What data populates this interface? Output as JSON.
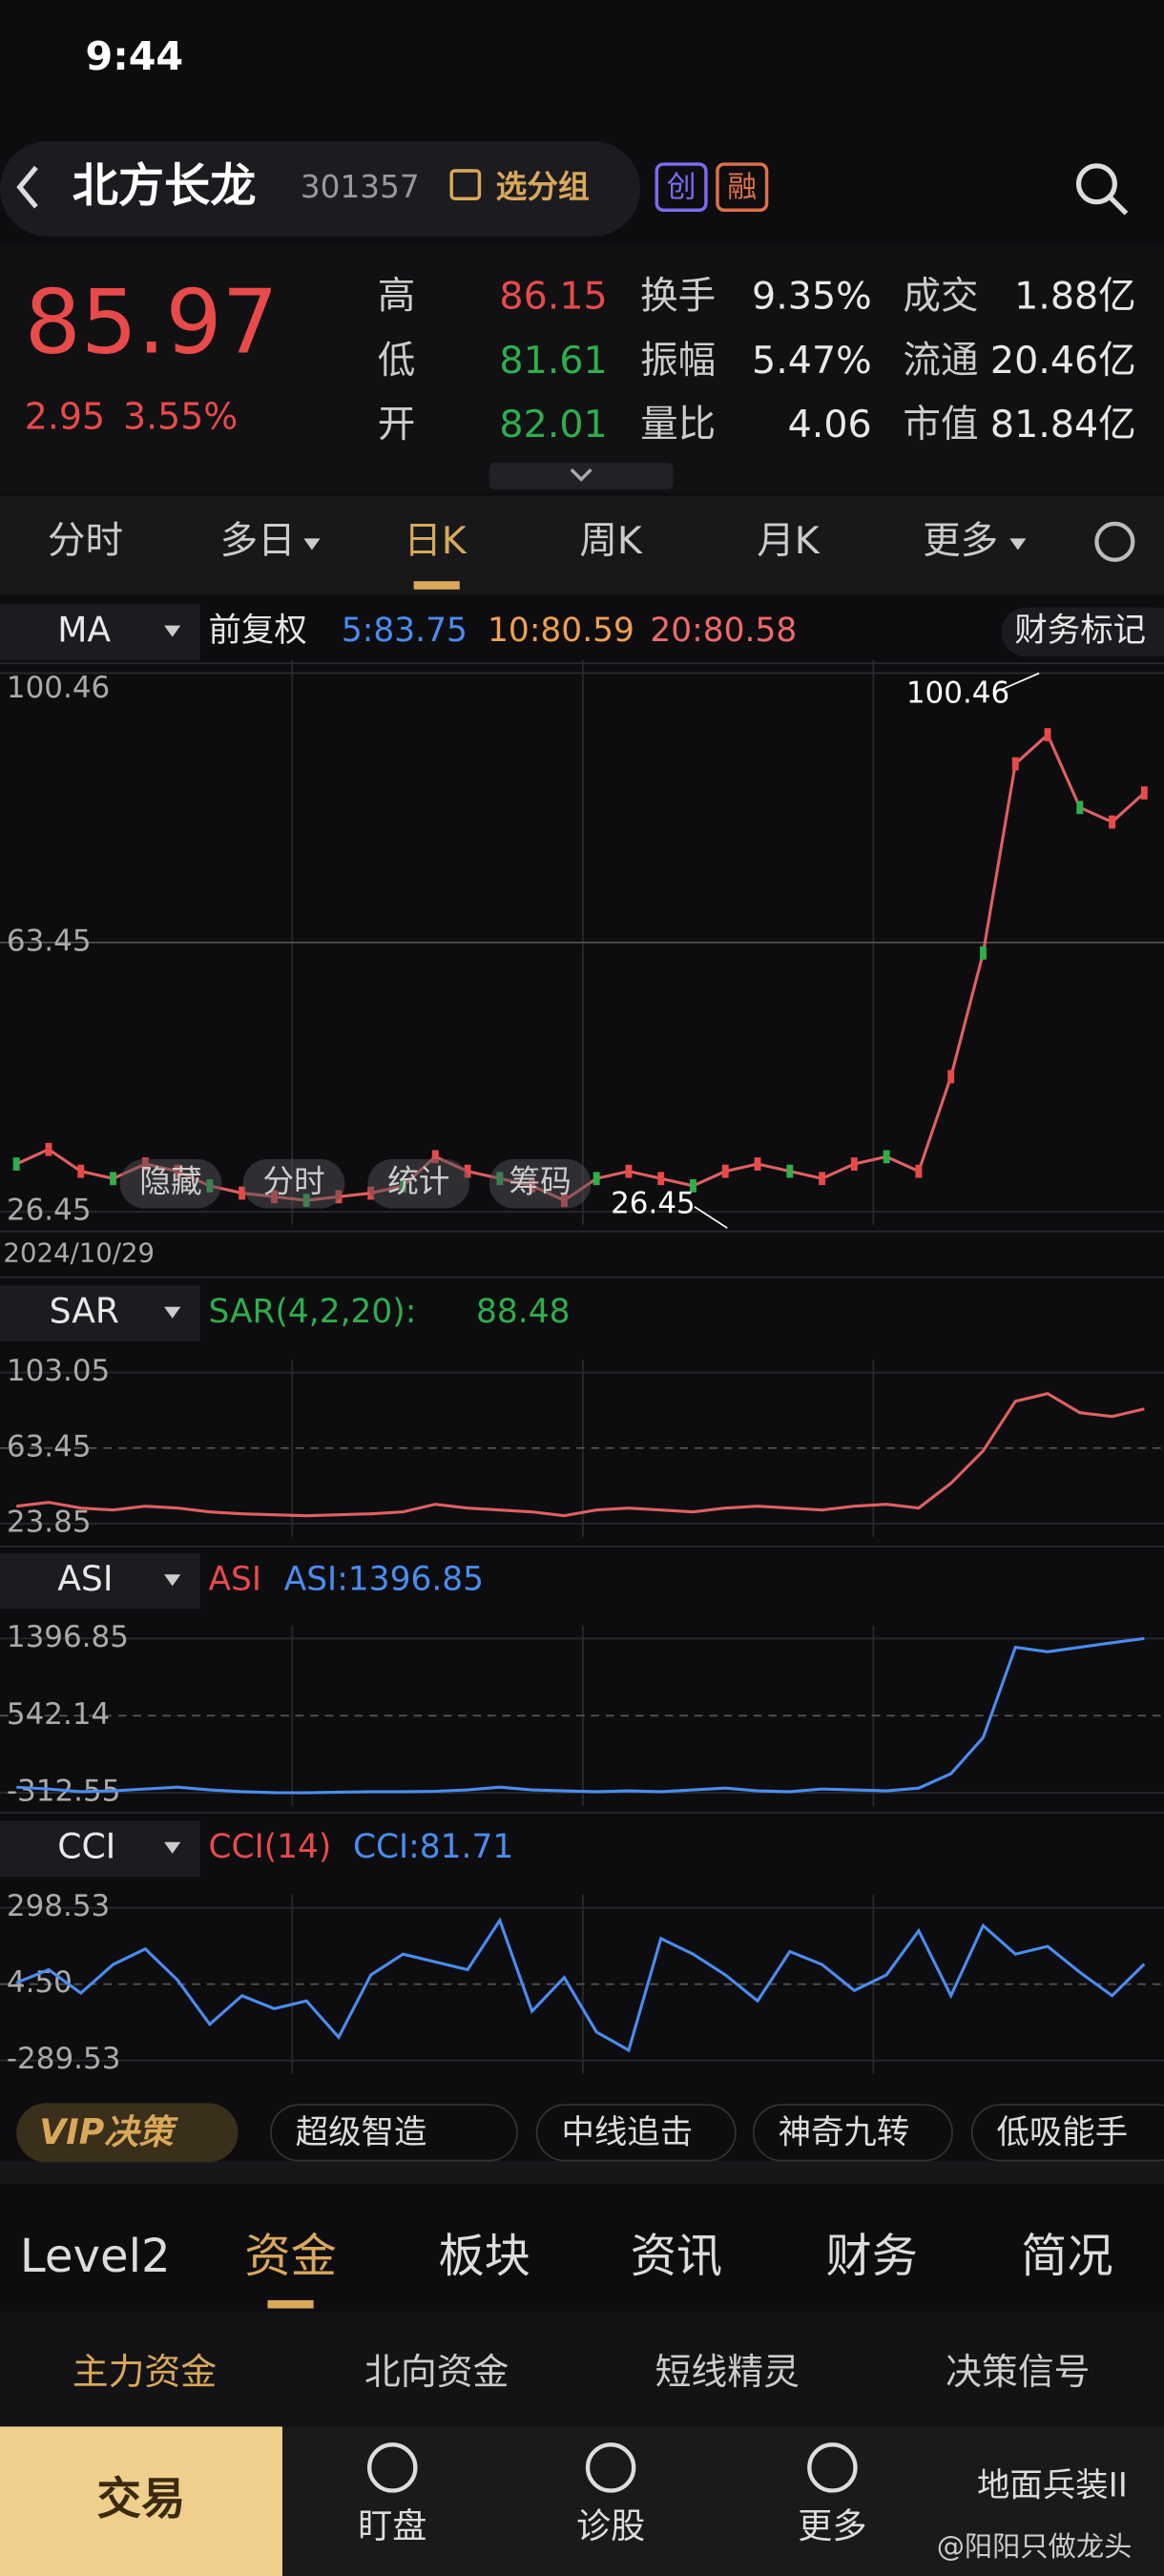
{
  "status": {
    "time": "9:44"
  },
  "header": {
    "name": "北方长龙",
    "code": "301357",
    "group": "选分组",
    "badges": [
      "创",
      "融"
    ]
  },
  "quote": {
    "price": "85.97",
    "change": "2.95",
    "pct": "3.55%",
    "stats": [
      [
        [
          "高",
          "86.15"
        ],
        [
          "换手",
          "9.35%"
        ],
        [
          "成交",
          "1.88亿"
        ]
      ],
      [
        [
          "低",
          "81.61"
        ],
        [
          "振幅",
          "5.47%"
        ],
        [
          "流通",
          "20.46亿"
        ]
      ],
      [
        [
          "开",
          "82.01"
        ],
        [
          "量比",
          "4.06"
        ],
        [
          "市值",
          "81.84亿"
        ]
      ]
    ]
  },
  "tabs": [
    "分时",
    "多日",
    "日K",
    "周K",
    "月K",
    "更多"
  ],
  "ma_legend": {
    "name": "MA",
    "adjust": "前复权",
    "ma5": "5:83.75",
    "ma10": "10:80.59",
    "ma20": "20:80.58",
    "finance": "财务标记"
  },
  "tools": [
    "隐藏",
    "分时",
    "统计",
    "筹码"
  ],
  "price_chart": {
    "ylim": [
      26.45,
      100.46
    ],
    "yticks": [
      100.46,
      63.45,
      26.45
    ],
    "high_label": "100.46",
    "low_label": "26.45",
    "start_date": "2024/10/29",
    "closes": [
      33,
      35,
      32,
      31,
      33,
      32,
      30,
      29,
      28.5,
      28,
      28.5,
      29,
      30,
      34,
      32,
      31,
      30,
      28,
      31,
      32,
      31,
      30,
      32,
      33,
      32,
      31,
      33,
      34,
      32,
      45,
      62,
      88,
      92,
      82,
      80,
      84
    ]
  },
  "sar_panel": {
    "name": "SAR",
    "label": "SAR(4,2,20):",
    "value": "88.48",
    "ylim": [
      23.85,
      103.05
    ],
    "yticks": [
      103.05,
      63.45,
      23.85
    ]
  },
  "asi_panel": {
    "name": "ASI",
    "label": "ASI",
    "value": "ASI:1396.85",
    "ylim": [
      -312.55,
      1396.85
    ],
    "yticks": [
      1396.85,
      542.14,
      -312.55
    ],
    "values": [
      -250,
      -270,
      -300,
      -290,
      -270,
      -250,
      -280,
      -300,
      -310,
      -312,
      -305,
      -300,
      -300,
      -295,
      -280,
      -250,
      -280,
      -290,
      -300,
      -290,
      -300,
      -280,
      -260,
      -290,
      -300,
      -270,
      -280,
      -290,
      -260,
      -100,
      300,
      1300,
      1250,
      1300,
      1350,
      1396.85
    ]
  },
  "cci_panel": {
    "name": "CCI",
    "label": "CCI(14)",
    "value": "CCI:81.71",
    "ylim": [
      -289.53,
      298.53
    ],
    "yticks": [
      298.53,
      {
        "value": 4.5,
        "label": "4.50"
      },
      -289.53
    ],
    "values": [
      10,
      60,
      -30,
      80,
      140,
      20,
      -150,
      -40,
      -90,
      -60,
      -200,
      40,
      120,
      90,
      60,
      250,
      -100,
      30,
      -180,
      -250,
      180,
      120,
      40,
      -60,
      130,
      80,
      -20,
      40,
      210,
      -40,
      230,
      120,
      150,
      50,
      -40,
      81.71
    ]
  },
  "vip": {
    "label": "VIP决策",
    "features": [
      "超级智造",
      "中线追击",
      "神奇九转",
      "低吸能手"
    ]
  },
  "bottom_tabs": [
    "Level2",
    "资金",
    "板块",
    "资讯",
    "财务",
    "简况"
  ],
  "sub_tabs": [
    "主力资金",
    "北向资金",
    "短线精灵",
    "决策信号"
  ],
  "nav": {
    "trade": "交易",
    "items": [
      "盯盘",
      "诊股",
      "更多"
    ],
    "stock": "地面兵装II",
    "watermark": "@阳阳只做龙头"
  }
}
